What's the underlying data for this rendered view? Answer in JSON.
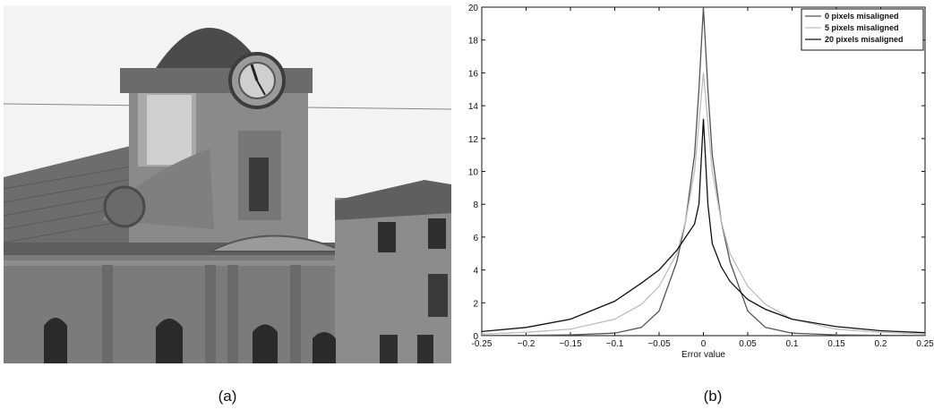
{
  "figure": {
    "panel_a_caption": "(a)",
    "panel_b_caption": "(b)"
  },
  "photo": {
    "subject": "building-with-clock-tower",
    "colors": {
      "sky": "#f2f2f2",
      "roof": "#6c6c6c",
      "facade": "#7a7a7a",
      "dome": "#4a4a4a",
      "window": "#2a2a2a"
    }
  },
  "chart_data": {
    "type": "line",
    "title": "",
    "xlabel": "Error value",
    "ylabel": "",
    "xlim": [
      -0.25,
      0.25
    ],
    "ylim": [
      0,
      20
    ],
    "xticks": [
      -0.25,
      -0.2,
      -0.15,
      -0.1,
      -0.05,
      0,
      0.05,
      0.1,
      0.15,
      0.2,
      0.25
    ],
    "xtick_labels": [
      "-0.25",
      "−0.2",
      "−0.15",
      "−0.1",
      "−0.05",
      "0",
      "0.05",
      "0.1",
      "0.15",
      "0.2",
      "0.25"
    ],
    "yticks": [
      0,
      2,
      4,
      6,
      8,
      10,
      12,
      14,
      16,
      18,
      20
    ],
    "ytick_labels": [
      "0",
      "2",
      "4",
      "6",
      "8",
      "10",
      "12",
      "14",
      "16",
      "18",
      "20"
    ],
    "grid": false,
    "legend_position": "top-right",
    "series": [
      {
        "name": "0 pixels misaligned",
        "color": "#555555",
        "x": [
          -0.25,
          -0.2,
          -0.15,
          -0.1,
          -0.07,
          -0.05,
          -0.03,
          -0.02,
          -0.01,
          -0.005,
          0,
          0.005,
          0.01,
          0.02,
          0.03,
          0.05,
          0.07,
          0.1,
          0.15,
          0.2,
          0.25
        ],
        "y": [
          0.01,
          0.02,
          0.05,
          0.15,
          0.5,
          1.5,
          4.5,
          7.0,
          11.0,
          15.0,
          20.0,
          15.0,
          11.0,
          7.0,
          4.5,
          1.5,
          0.5,
          0.15,
          0.05,
          0.02,
          0.01
        ]
      },
      {
        "name": "5 pixels misaligned",
        "color": "#bdbdbd",
        "x": [
          -0.25,
          -0.2,
          -0.15,
          -0.1,
          -0.07,
          -0.05,
          -0.03,
          -0.02,
          -0.01,
          -0.005,
          0,
          0.005,
          0.01,
          0.02,
          0.03,
          0.05,
          0.07,
          0.1,
          0.15,
          0.2,
          0.25
        ],
        "y": [
          0.1,
          0.2,
          0.4,
          1.0,
          1.9,
          3.0,
          5.0,
          7.0,
          10.0,
          13.0,
          16.0,
          13.0,
          10.0,
          7.0,
          5.0,
          3.0,
          1.9,
          1.0,
          0.4,
          0.2,
          0.1
        ]
      },
      {
        "name": "20 pixels misaligned",
        "color": "#111111",
        "x": [
          -0.25,
          -0.2,
          -0.15,
          -0.1,
          -0.07,
          -0.05,
          -0.03,
          -0.02,
          -0.01,
          -0.005,
          0,
          0.005,
          0.01,
          0.02,
          0.03,
          0.05,
          0.07,
          0.1,
          0.15,
          0.2,
          0.25
        ],
        "y": [
          0.25,
          0.5,
          1.0,
          2.1,
          3.2,
          4.0,
          5.2,
          6.0,
          6.8,
          8.0,
          13.2,
          8.0,
          5.6,
          4.2,
          3.3,
          2.2,
          1.6,
          1.0,
          0.55,
          0.3,
          0.18
        ]
      }
    ]
  }
}
